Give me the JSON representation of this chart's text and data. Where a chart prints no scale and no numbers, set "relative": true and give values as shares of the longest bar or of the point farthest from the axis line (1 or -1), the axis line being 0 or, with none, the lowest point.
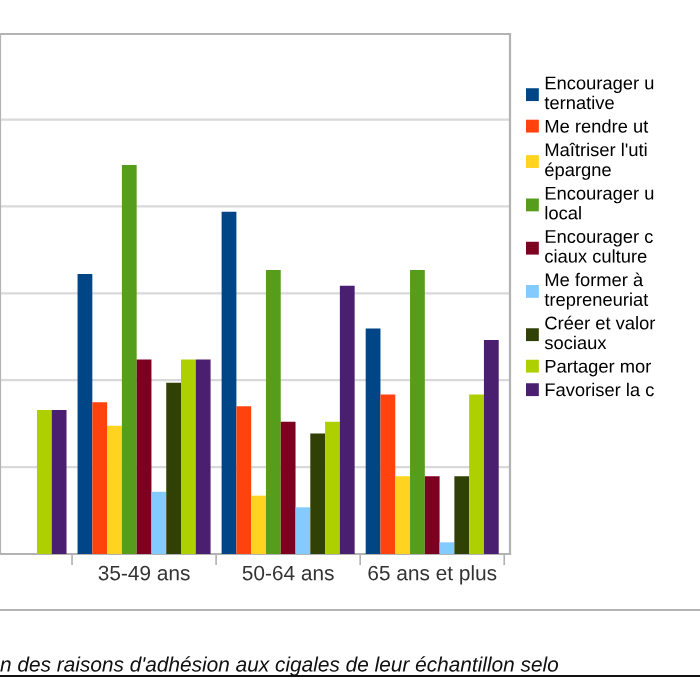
{
  "chart_data": {
    "type": "bar",
    "relative": true,
    "categories": [
      null,
      "35-49 ans",
      "50-64 ans",
      "65 ans et plus"
    ],
    "series": [
      {
        "name": "Encourager u\nternative",
        "color": "#004586",
        "values": [
          null,
          0.72,
          0.88,
          0.58
        ]
      },
      {
        "name": "Me rendre ut",
        "color": "#ff420e",
        "values": [
          null,
          0.39,
          0.38,
          0.41
        ]
      },
      {
        "name": "Maîtriser l'uti\népargne",
        "color": "#ffd320",
        "values": [
          null,
          0.33,
          0.15,
          0.2
        ]
      },
      {
        "name": "Encourager u\nlocal",
        "color": "#579d1c",
        "values": [
          null,
          1,
          0.73,
          0.73
        ]
      },
      {
        "name": "Encourager c\nciaux culture",
        "color": "#7e0021",
        "values": [
          null,
          0.5,
          0.34,
          0.2
        ]
      },
      {
        "name": "Me former à\ntrepreneuriat",
        "color": "#83caff",
        "values": [
          null,
          0.16,
          0.12,
          0.03
        ]
      },
      {
        "name": "Créer et valor\nsociaux",
        "color": "#314004",
        "values": [
          null,
          0.44,
          0.31,
          0.2
        ]
      },
      {
        "name": "Partager mor",
        "color": "#aecf00",
        "values": [
          0.37,
          0.5,
          0.34,
          0.41
        ]
      },
      {
        "name": "Favoriser la c",
        "color": "#4b1f6f",
        "values": [
          0.37,
          0.5,
          0.69,
          0.55
        ]
      }
    ],
    "grid": "y",
    "legend": "right",
    "annotations": [
      "n des raisons d'adhésion aux cigales de leur échantillon selo"
    ]
  }
}
